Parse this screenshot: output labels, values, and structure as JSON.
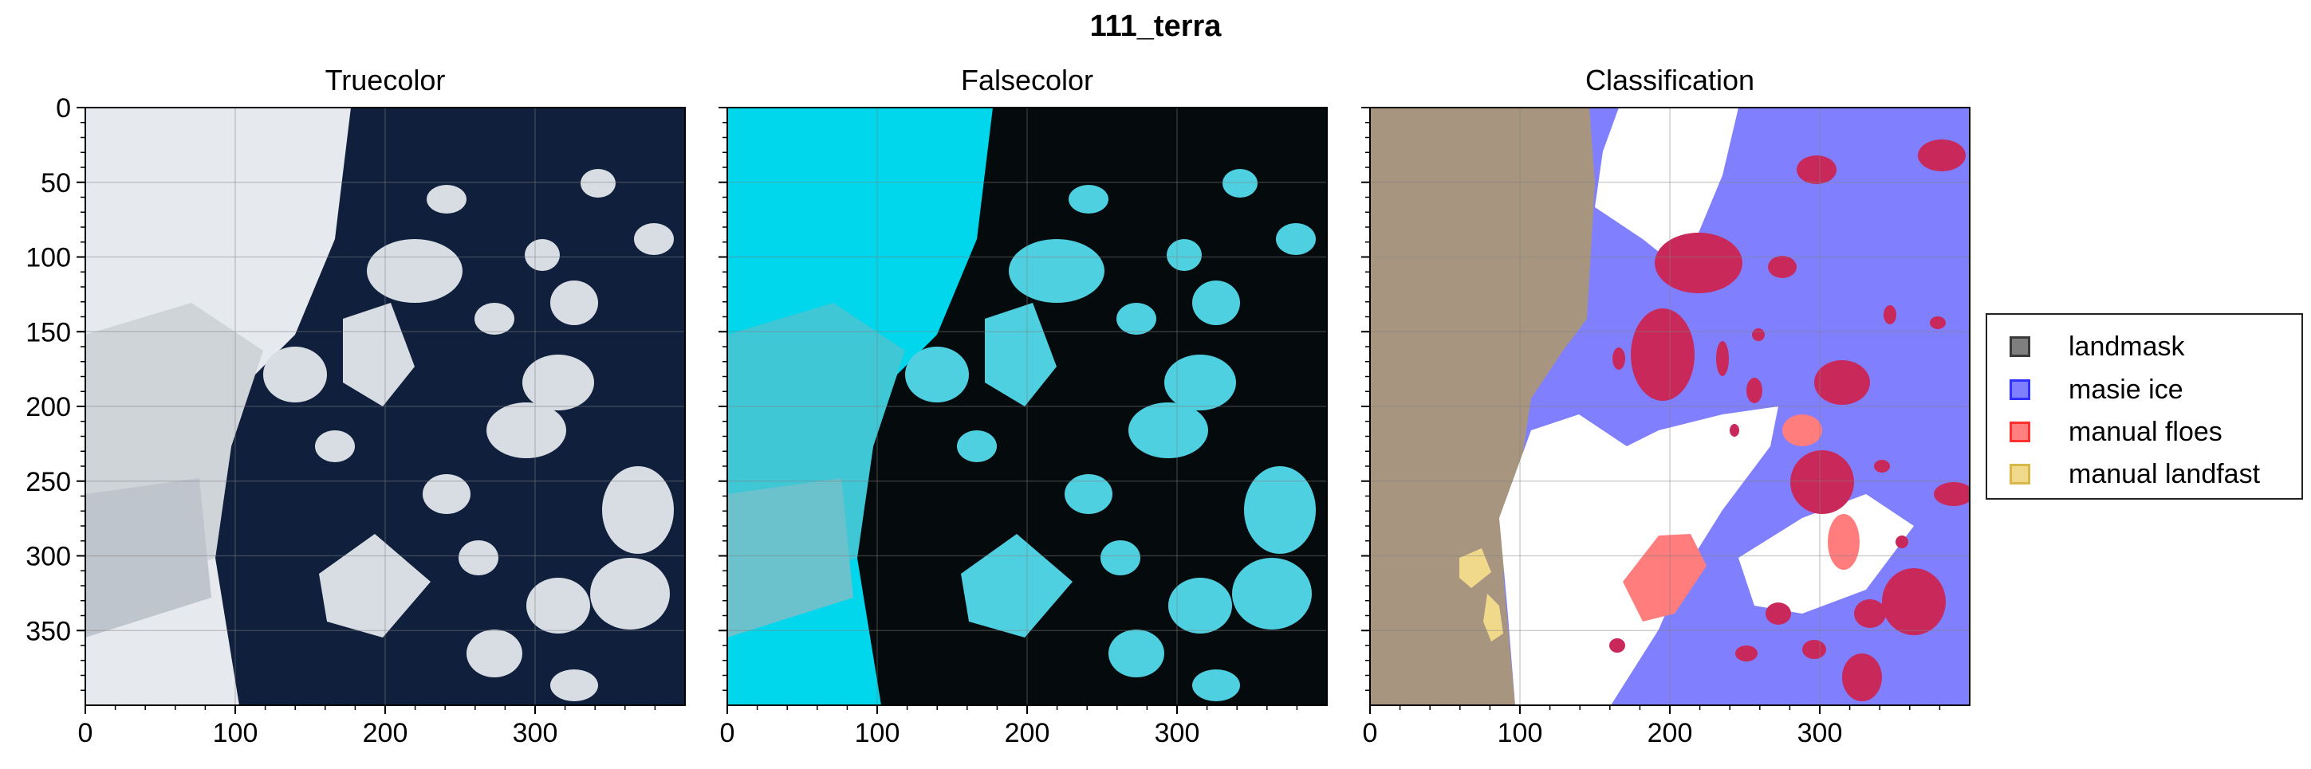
{
  "figure": {
    "title": "111_terra"
  },
  "panels": [
    {
      "id": "truecolor",
      "title": "Truecolor"
    },
    {
      "id": "falsecolor",
      "title": "Falsecolor"
    },
    {
      "id": "classification",
      "title": "Classification"
    }
  ],
  "axes": {
    "x_ticks": [
      0,
      100,
      200,
      300
    ],
    "y_ticks": [
      0,
      50,
      100,
      150,
      200,
      250,
      300,
      350
    ],
    "xlim": [
      0,
      400
    ],
    "ylim": [
      400,
      0
    ]
  },
  "legend": {
    "placement": "right",
    "items": [
      {
        "label": "landmask",
        "color": "#7f7f7f",
        "border": "#3a3a3a"
      },
      {
        "label": "masie ice",
        "color": "#8080ff",
        "border": "#3030ff"
      },
      {
        "label": "manual floes",
        "color": "#ff8080",
        "border": "#ff3030"
      },
      {
        "label": "manual landfast",
        "color": "#f0d98a",
        "border": "#d9b84a"
      }
    ]
  },
  "colors": {
    "truecolor_land": "#e6eaee",
    "truecolor_water": "#0f1f3c",
    "truecolor_ice": "#d8dde3",
    "falsecolor_land": "#00d6ec",
    "falsecolor_water": "#050a0c",
    "falsecolor_ice": "#4fd0e0",
    "class_land": "#a8957f",
    "class_masie": "#8080ff",
    "class_white": "#ffffff",
    "class_floe": "#c8285a",
    "class_manual_floe": "#ff7d7d",
    "class_landfast": "#f0d98a"
  }
}
